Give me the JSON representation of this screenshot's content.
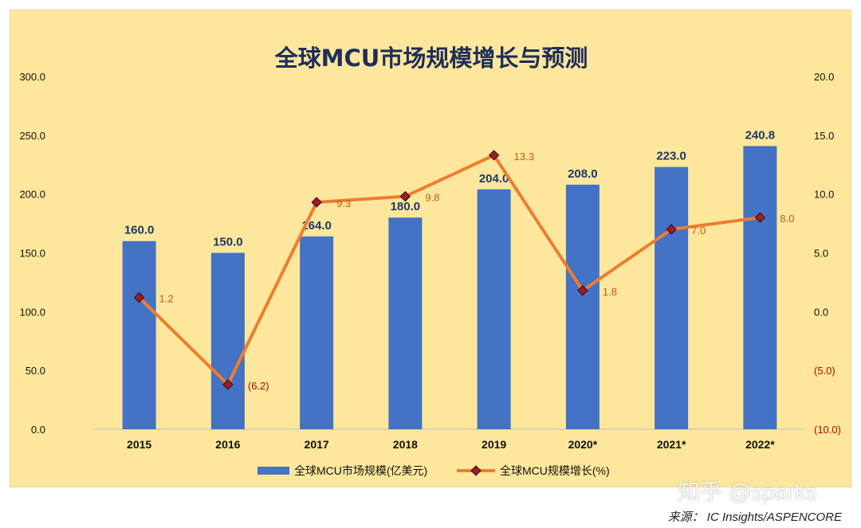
{
  "chart_data": {
    "type": "bar+line",
    "title": "全球MCU市场规模增长与预测",
    "categories": [
      "2015",
      "2016",
      "2017",
      "2018",
      "2019",
      "2020*",
      "2021*",
      "2022*"
    ],
    "series": [
      {
        "name": "全球MCU市场规模(亿美元)",
        "type": "bar",
        "axis": "left",
        "values": [
          160.0,
          150.0,
          164.0,
          180.0,
          204.0,
          208.0,
          223.0,
          240.8
        ],
        "labels": [
          "160.0",
          "150.0",
          "164.0",
          "180.0",
          "204.0",
          "208.0",
          "223.0",
          "240.8"
        ]
      },
      {
        "name": "全球MCU规模增长(%)",
        "type": "line",
        "axis": "right",
        "values": [
          1.2,
          -6.2,
          9.3,
          9.8,
          13.3,
          1.8,
          7.0,
          8.0
        ],
        "labels": [
          "1.2",
          "(6.2)",
          "9.3",
          "9.8",
          "13.3",
          "1.8",
          "7.0",
          "8.0"
        ]
      }
    ],
    "y_left": {
      "min": 0,
      "max": 300,
      "ticks": [
        "0.0",
        "50.0",
        "100.0",
        "150.0",
        "200.0",
        "250.0",
        "300.0"
      ]
    },
    "y_right": {
      "min": -10,
      "max": 20,
      "ticks": [
        "(10.0)",
        "(5.0)",
        "0.0",
        "5.0",
        "10.0",
        "15.0",
        "20.0"
      ]
    },
    "legend_position": "bottom",
    "grid": false,
    "colors": {
      "bar": "#4472c4",
      "line": "#ed7d31",
      "marker": "#9b1c2a",
      "bar_label": "#1f3864",
      "line_label": "#c55a11",
      "negative_label": "#c00000",
      "title": "#1f2d5a",
      "background": "#fde79c"
    }
  },
  "source": "来源： IC Insights/ASPENCORE",
  "watermark": "知乎 @sparks"
}
